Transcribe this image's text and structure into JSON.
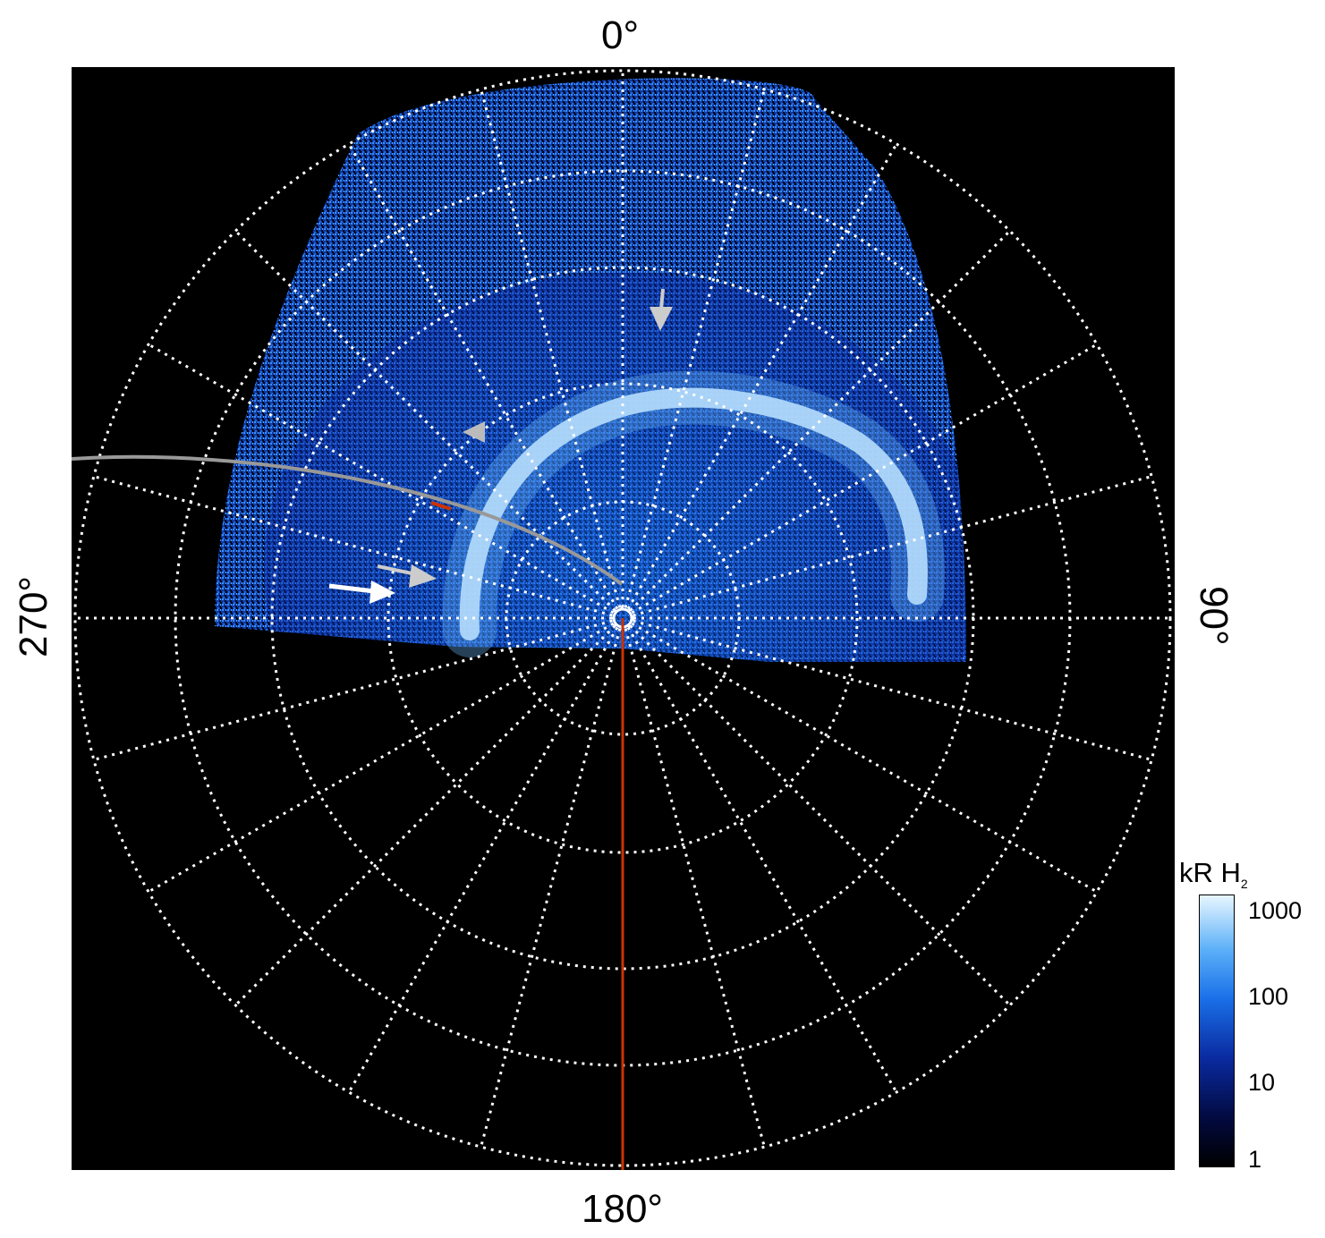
{
  "axis_labels": {
    "top": "0°",
    "right": "90°",
    "bottom": "180°",
    "left": "270°"
  },
  "colorbar": {
    "title": "kR H",
    "title_sub": "2",
    "ticks": [
      "1000",
      "100",
      "10",
      "1"
    ]
  },
  "colors": {
    "background": "#000000",
    "grid": "#ffffff",
    "meridian_line": "#cc3300",
    "trajectory": "#999999",
    "trajectory_highlight": "#cc3300",
    "emission_low": "#0a2aa0",
    "emission_mid": "#1a70e8",
    "emission_high": "#e8f6ff"
  },
  "annotations": {
    "white_arrow": "arrow",
    "gray_arrows": [
      "arrow-top",
      "arrow-left",
      "arrow-lower-left"
    ]
  }
}
